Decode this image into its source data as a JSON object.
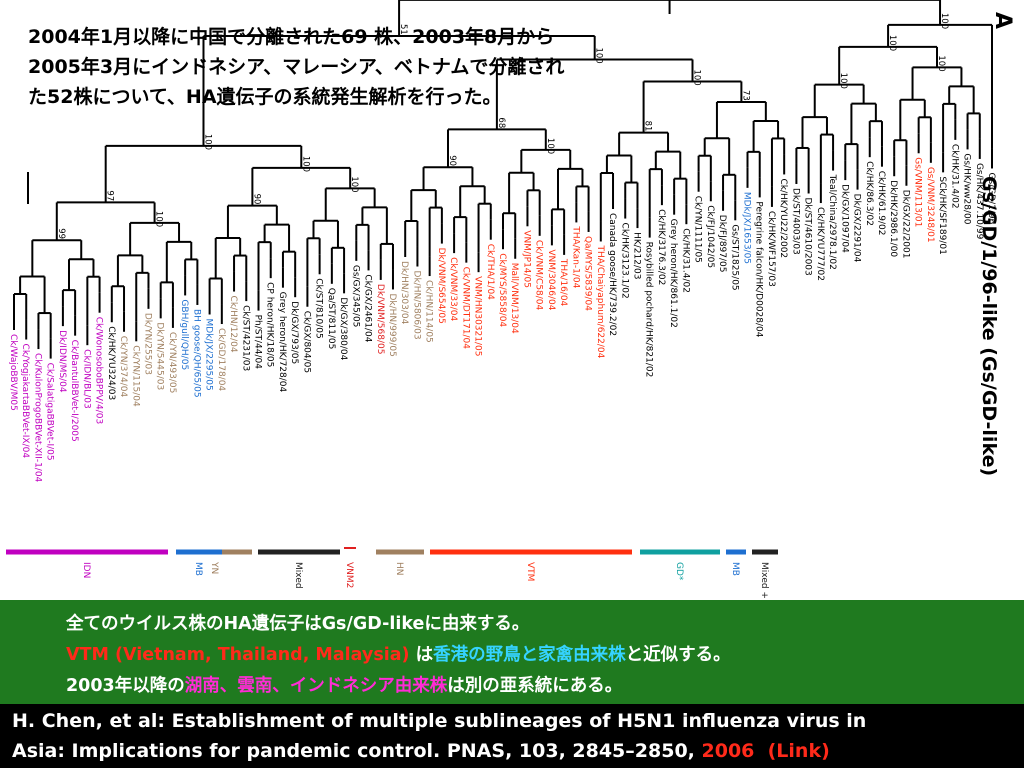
{
  "intro": {
    "line1": "2004年1月以降に中国で分離された69 株、2003年8月から",
    "line2": "2005年3月にインドネシア、マレーシア、ベトナムで分離され",
    "line3": "た52株について、HA遺伝子の系統発生解析を行った。"
  },
  "tree": {
    "panel_letter": "A",
    "root_label": "Gs/GD/1/96-like (Gs/GD-like)",
    "bootstrap_values": [
      "99",
      "100",
      "90",
      "100",
      "90",
      "100",
      "81",
      "73",
      "100",
      "100",
      "97",
      "100",
      "68",
      "100",
      "100",
      "100",
      "100",
      "100",
      "51",
      "96",
      "100",
      "100",
      "100",
      "100",
      "66",
      "100",
      "99",
      "100"
    ],
    "clades": [
      {
        "name": "IDN",
        "color": "#c000c0"
      },
      {
        "name": "YN",
        "color": "#a08060"
      },
      {
        "name": "MB",
        "color": "#1e6fd0"
      },
      {
        "name": "Mixed",
        "color": "#222222"
      },
      {
        "name": "VNM2",
        "color": "#e02020"
      },
      {
        "name": "HN",
        "color": "#a08060"
      },
      {
        "name": "VTM",
        "color": "#ff3010"
      },
      {
        "name": "GD*",
        "color": "#10a0a0"
      },
      {
        "name": "MB",
        "color": "#1e6fd0"
      },
      {
        "name": "Mixed +",
        "color": "#222222"
      }
    ],
    "leaves": [
      {
        "label": "Ck/WajoBBV/M05",
        "color": "#c000c0"
      },
      {
        "label": "Ck/YogjakartaBBVet-IX/04",
        "color": "#c000c0"
      },
      {
        "label": "Ck/KulonProgoBBVet-XII-1/04",
        "color": "#c000c0"
      },
      {
        "label": "Ck/SalatigaBBVet-I/05",
        "color": "#c000c0"
      },
      {
        "label": "Dk/IDN/MS/04",
        "color": "#c000c0"
      },
      {
        "label": "Ck/BantulBBVet-I/2005",
        "color": "#c000c0"
      },
      {
        "label": "Ck/IDN/BL/03",
        "color": "#c000c0"
      },
      {
        "label": "Ck/WonosoboBPPV/4/03",
        "color": "#c000c0"
      },
      {
        "label": "Ck/HK/YU324/03",
        "color": "#000000"
      },
      {
        "label": "Ck/YN/374/04",
        "color": "#a08060"
      },
      {
        "label": "Ck/YN/115/04",
        "color": "#a08060"
      },
      {
        "label": "Dk/YN/255/03",
        "color": "#a08060"
      },
      {
        "label": "Dk/YN/5445/03",
        "color": "#a08060"
      },
      {
        "label": "Ck/YN/493/05",
        "color": "#a08060"
      },
      {
        "label": "GBH/gull/QH/05",
        "color": "#1e6fd0"
      },
      {
        "label": "BH goose/QH/65/05",
        "color": "#1e6fd0"
      },
      {
        "label": "MDk/JX/2295/05",
        "color": "#1e6fd0"
      },
      {
        "label": "Ck/GD/178/04",
        "color": "#a08060"
      },
      {
        "label": "Ck/HN/12/04",
        "color": "#a08060"
      },
      {
        "label": "Ck/ST/4231/03",
        "color": "#000000"
      },
      {
        "label": "Ph/ST/44/04",
        "color": "#000000"
      },
      {
        "label": "CP heron/HK/18/05",
        "color": "#000000"
      },
      {
        "label": "Grey heron/HK/728/04",
        "color": "#000000"
      },
      {
        "label": "Dk/GX/793/05",
        "color": "#000000"
      },
      {
        "label": "Ck/GX/804/05",
        "color": "#000000"
      },
      {
        "label": "Ck/ST/810/05",
        "color": "#000000"
      },
      {
        "label": "Qa/ST/811/05",
        "color": "#000000"
      },
      {
        "label": "Dk/GX/380/04",
        "color": "#000000"
      },
      {
        "label": "Gs/GX/345/05",
        "color": "#000000"
      },
      {
        "label": "Ck/GX/2461/04",
        "color": "#000000"
      },
      {
        "label": "Dk/VNM/568/05",
        "color": "#e02020"
      },
      {
        "label": "Dk/HN/999/05",
        "color": "#a08060"
      },
      {
        "label": "Dk/HN/303/04",
        "color": "#a08060"
      },
      {
        "label": "Dk/HN/5806/03",
        "color": "#a08060"
      },
      {
        "label": "Ck/HN/114/05",
        "color": "#a08060"
      },
      {
        "label": "Dk/VNM/S654/05",
        "color": "#ff3010"
      },
      {
        "label": "Ck/VNM/33/04",
        "color": "#ff3010"
      },
      {
        "label": "Ck/VNM/DT171/04",
        "color": "#ff3010"
      },
      {
        "label": "VNM/HN30321/05",
        "color": "#ff3010"
      },
      {
        "label": "Ck/THA/1/04",
        "color": "#ff3010"
      },
      {
        "label": "Ck/MYS/5858/04",
        "color": "#ff3010"
      },
      {
        "label": "Mall/VNM/13/04",
        "color": "#ff3010"
      },
      {
        "label": "VNM/JP14/05",
        "color": "#ff3010"
      },
      {
        "label": "Ck/VNM/C58/04",
        "color": "#ff3010"
      },
      {
        "label": "VNM/3046/04",
        "color": "#ff3010"
      },
      {
        "label": "THA/16/04",
        "color": "#ff3010"
      },
      {
        "label": "THA/Kan-1/04",
        "color": "#ff3010"
      },
      {
        "label": "Qa/MYS/5839/04",
        "color": "#ff3010"
      },
      {
        "label": "THA/Chaiyaphum/622/04",
        "color": "#ff3010"
      },
      {
        "label": "Canada goose/HK/739.2/02",
        "color": "#000000"
      },
      {
        "label": "Ck/HK/3123.1/02",
        "color": "#000000"
      },
      {
        "label": "HK/212/03",
        "color": "#000000"
      },
      {
        "label": "Rosybilled pochard/HK/821/02",
        "color": "#000000"
      },
      {
        "label": "Ck/HK/3176.3/02",
        "color": "#000000"
      },
      {
        "label": "Grey heron/HK/861.1/02",
        "color": "#000000"
      },
      {
        "label": "Ck/HK/31.4/02",
        "color": "#000000"
      },
      {
        "label": "Ck/YN/1111/05",
        "color": "#000000"
      },
      {
        "label": "Ck/FJ/1042/05",
        "color": "#000000"
      },
      {
        "label": "Dk/FJ/897/05",
        "color": "#000000"
      },
      {
        "label": "Gs/ST/1825/05",
        "color": "#000000"
      },
      {
        "label": "MDk/JX/1653/05",
        "color": "#1e6fd0"
      },
      {
        "label": "Peregrine falcon/HK/D0028/04",
        "color": "#000000"
      },
      {
        "label": "Ck/HK/WF157/03",
        "color": "#000000"
      },
      {
        "label": "Ck/HK/YU22/2002",
        "color": "#000000"
      },
      {
        "label": "Dk/ST/4003/03",
        "color": "#000000"
      },
      {
        "label": "Dk/ST/4610/2003",
        "color": "#000000"
      },
      {
        "label": "Ck/HK/YU777/02",
        "color": "#000000"
      },
      {
        "label": "Teal/China/2978.1/02",
        "color": "#000000"
      },
      {
        "label": "Dk/GX/1097/04",
        "color": "#000000"
      },
      {
        "label": "Dk/GX/2291/04",
        "color": "#000000"
      },
      {
        "label": "Ck/HK/86.3/02",
        "color": "#000000"
      },
      {
        "label": "Ck/HK/61.9/02",
        "color": "#000000"
      },
      {
        "label": "Dk/HK/2986.1/00",
        "color": "#000000"
      },
      {
        "label": "Dk/GX/22/2001",
        "color": "#000000"
      },
      {
        "label": "Gs/VNM/113/01",
        "color": "#ff3010"
      },
      {
        "label": "Gs/VNM/3248/01",
        "color": "#ff3010"
      },
      {
        "label": "SCk/HK/SF189/01",
        "color": "#000000"
      },
      {
        "label": "Ck/HK/31.4/02",
        "color": "#000000"
      },
      {
        "label": "Gs/HK/ww28/00",
        "color": "#000000"
      },
      {
        "label": "Gs/HK/437.10/99",
        "color": "#000000"
      },
      {
        "label": "Gs/GD/1/96",
        "color": "#000000"
      }
    ]
  },
  "summary": {
    "line1": "全てのウイルス株のHA遺伝子はGs/GD-likeに由来する。",
    "line2_red": "VTM (Vietnam, Thailand, Malaysia)",
    "line2_mid": " は",
    "line2_cyan": "香港の野鳥と家禽由来株",
    "line2_end": "と近似する。",
    "line3_start": "2003年以降の",
    "line3_magenta": "湖南、雲南、インドネシア由来株",
    "line3_end": "は別の亜系統にある。"
  },
  "citation": {
    "line1": "H. Chen, et al: Establishment of multiple sublineages of H5N1 influenza virus in",
    "line2_text": "Asia: Implications for pandemic control. PNAS, 103, 2845–2850, ",
    "line2_year": "2006",
    "line2_link": "(Link)",
    "link_color": "#ff2a1a"
  }
}
